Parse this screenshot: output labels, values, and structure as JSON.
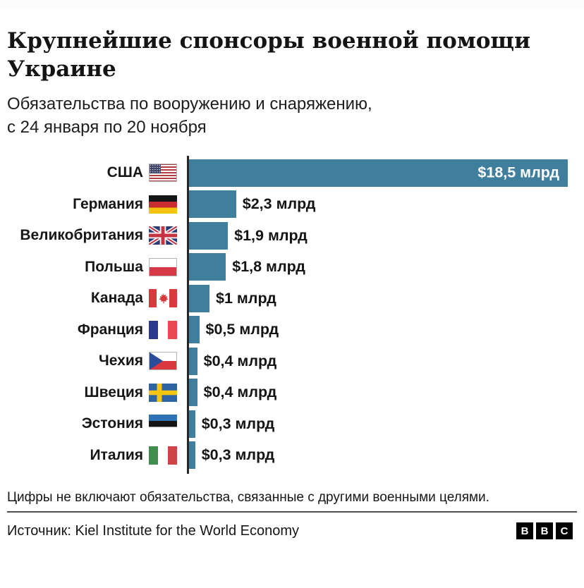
{
  "header": {
    "title": "Крупнейшие спонсоры военной помощи\nУкраине",
    "subtitle": "Обязательства по вооружению и снаряжению,\nс 24 января по 20 ноября"
  },
  "chart_data": {
    "type": "bar",
    "orientation": "horizontal",
    "title": "Крупнейшие спонсоры военной помощи Украине",
    "subtitle": "Обязательства по вооружению и снаряжению, с 24 января по 20 ноября",
    "unit": "$ млрд",
    "xlim": [
      0,
      18.5
    ],
    "grid": false,
    "bar_color": "#3F7F9D",
    "axis_color": "#262626",
    "categories": [
      "США",
      "Германия",
      "Великобритания",
      "Польша",
      "Канада",
      "Франция",
      "Чехия",
      "Швеция",
      "Эстония",
      "Италия"
    ],
    "values": [
      18.5,
      2.3,
      1.9,
      1.8,
      1.0,
      0.5,
      0.4,
      0.4,
      0.3,
      0.3
    ],
    "value_labels": [
      "$18,5 млрд",
      "$2,3 млрд",
      "$1,9 млрд",
      "$1,8 млрд",
      "$1 млрд",
      "$0,5 млрд",
      "$0,4 млрд",
      "$0,4 млрд",
      "$0,3 млрд",
      "$0,3 млрд"
    ],
    "flags": [
      "usa-flag-icon",
      "germany-flag-icon",
      "uk-flag-icon",
      "poland-flag-icon",
      "canada-flag-icon",
      "france-flag-icon",
      "czechia-flag-icon",
      "sweden-flag-icon",
      "estonia-flag-icon",
      "italy-flag-icon"
    ],
    "label_inside": [
      true,
      false,
      false,
      false,
      false,
      false,
      false,
      false,
      false,
      false
    ]
  },
  "footer": {
    "note": "Цифры не включают обязательства, связанные с другими военными целями.",
    "source": "Источник: Kiel Institute for the World Economy",
    "logo": [
      "B",
      "B",
      "C"
    ]
  }
}
